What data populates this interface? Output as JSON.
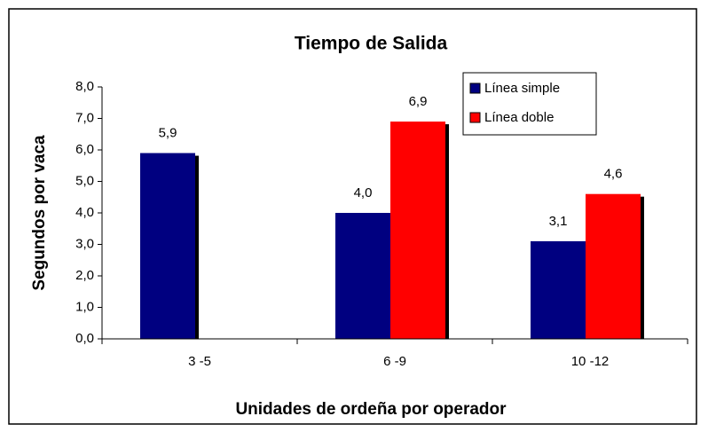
{
  "chart_data": {
    "type": "bar",
    "title": "Tiempo de Salida",
    "x_label": "Unidades de ordeña por operador",
    "y_label": "Segundos por vaca",
    "categories": [
      "3 -5",
      "6 -9",
      "10 -12"
    ],
    "series": [
      {
        "name": "Línea simple",
        "color": "#000080",
        "values": [
          5.9,
          4.0,
          3.1
        ],
        "value_labels": [
          "5,9",
          "4,0",
          "3,1"
        ]
      },
      {
        "name": "Línea doble",
        "color": "#ff0000",
        "values": [
          null,
          6.9,
          4.6
        ],
        "value_labels": [
          null,
          "6,9",
          "4,6"
        ]
      }
    ],
    "ylim": [
      0,
      8
    ],
    "yticks": [
      {
        "value": 0,
        "label": "0,0"
      },
      {
        "value": 1,
        "label": "1,0"
      },
      {
        "value": 2,
        "label": "2,0"
      },
      {
        "value": 3,
        "label": "3,0"
      },
      {
        "value": 4,
        "label": "4,0"
      },
      {
        "value": 5,
        "label": "5,0"
      },
      {
        "value": 6,
        "label": "6,0"
      },
      {
        "value": 7,
        "label": "7,0"
      },
      {
        "value": 8,
        "label": "8,0"
      }
    ],
    "grid": false,
    "legend": "top-right"
  }
}
